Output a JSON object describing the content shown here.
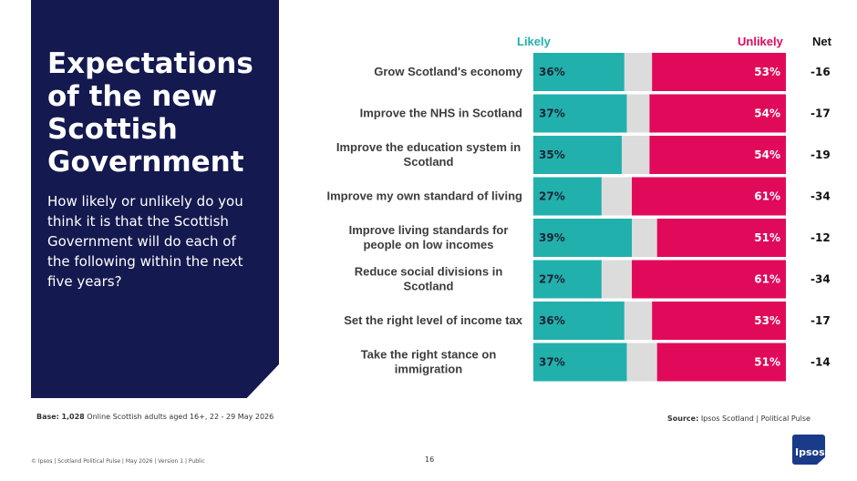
{
  "panel": {
    "title": "Expectations of the new Scottish Government",
    "subtitle": "How likely or unlikely do you think it is that the Scottish Government will do each of the following within the next five years?"
  },
  "headers": {
    "likely": "Likely",
    "unlikely": "Unlikely",
    "net": "Net"
  },
  "colors": {
    "likely": "#22b0ad",
    "neutral": "#dcdcdc",
    "unlikely": "#e10a5a",
    "panel": "#14194f"
  },
  "chart_data": {
    "type": "bar",
    "orientation": "horizontal",
    "stacked": true,
    "categories": [
      "Grow Scotland's economy",
      "Improve the NHS in Scotland",
      "Improve the education system in Scotland",
      "Improve my own standard of living",
      "Improve living standards for people on low incomes",
      "Reduce social divisions in Scotland",
      "Set the right level of income tax",
      "Take the right stance on immigration"
    ],
    "series": [
      {
        "name": "Likely",
        "values": [
          36,
          37,
          35,
          27,
          39,
          27,
          36,
          37
        ],
        "labels": [
          "36%",
          "37%",
          "35%",
          "27%",
          "39%",
          "27%",
          "36%",
          "37%"
        ]
      },
      {
        "name": "Unlikely",
        "values": [
          53,
          54,
          54,
          61,
          51,
          61,
          53,
          51
        ],
        "labels": [
          "53%",
          "54%",
          "54%",
          "61%",
          "51%",
          "61%",
          "53%",
          "51%"
        ]
      }
    ],
    "net": [
      "-16",
      "-17",
      "-19",
      "-34",
      "-12",
      "-34",
      "-17",
      "-14"
    ],
    "xlim": [
      0,
      100
    ]
  },
  "base": {
    "label": "Base:",
    "value": "1,028",
    "text": "Online Scottish adults aged 16+, 22 - 29 May 2026"
  },
  "source": {
    "label": "Source:",
    "text": "Ipsos Scotland | Political Pulse"
  },
  "footer": "© Ipsos | Scotland Political Pulse | May 2026 | Version 1 | Public",
  "page_number": "16",
  "logo_text": "Ipsos"
}
